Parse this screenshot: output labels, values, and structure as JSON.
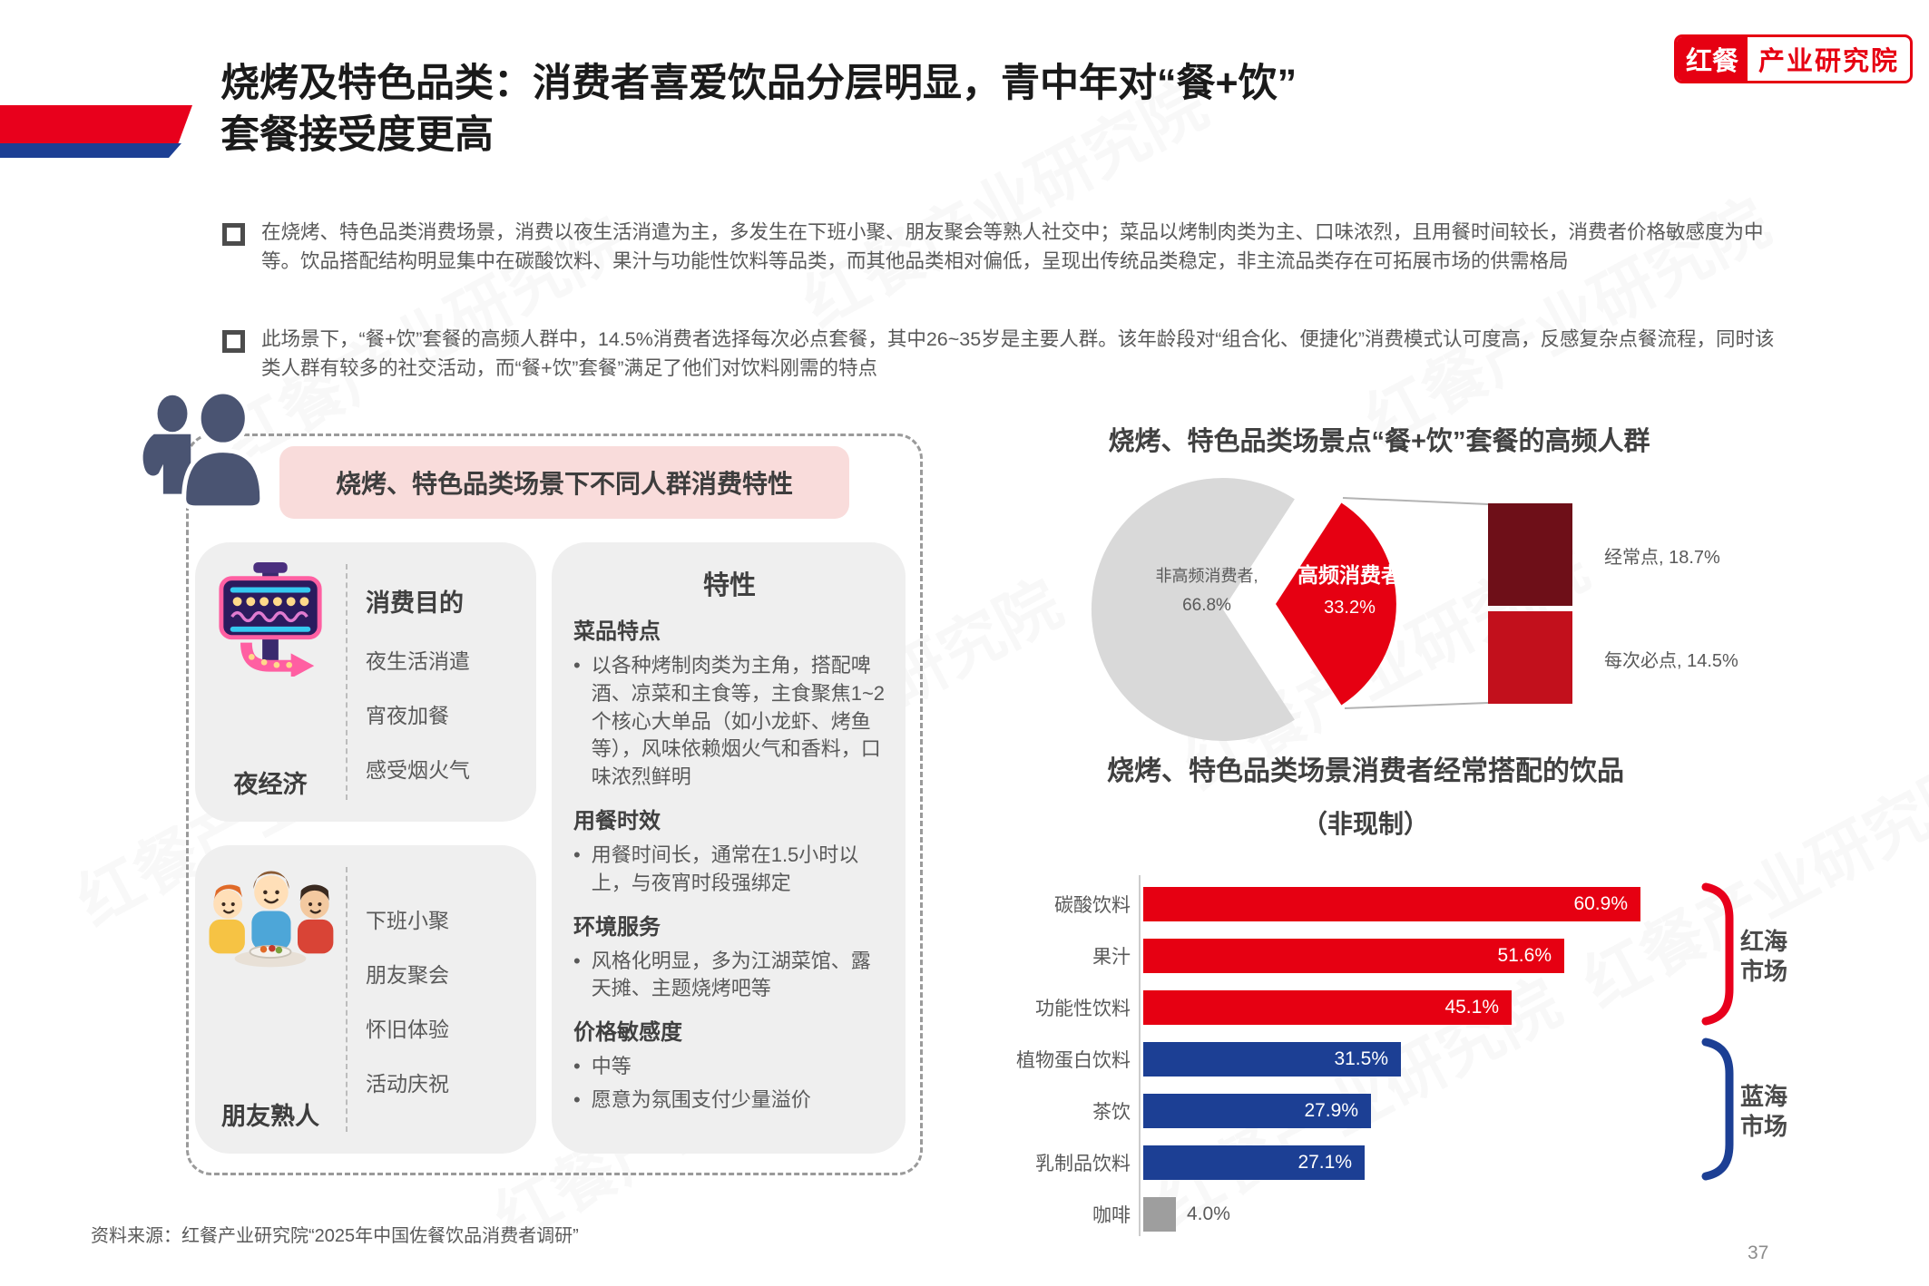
{
  "watermark": {
    "text": "红餐产业研究院"
  },
  "header": {
    "title_line1": "烧烤及特色品类：消费者喜爱饮品分层明显，青中年对“餐+饮”",
    "title_line2": "套餐接受度更高",
    "logo": {
      "brand": "红餐",
      "org": "产业研究院"
    }
  },
  "bullets": [
    "在烧烤、特色品类消费场景，消费以夜生活消遣为主，多发生在下班小聚、朋友聚会等熟人社交中；菜品以烤制肉类为主、口味浓烈，且用餐时间较长，消费者价格敏感度为中等。饮品搭配结构明显集中在碳酸饮料、果汁与功能性饮料等品类，而其他品类相对偏低，呈现出传统品类稳定，非主流品类存在可拓展市场的供需格局",
    "此场景下，“餐+饮”套餐的高频人群中，14.5%消费者选择每次必点套餐，其中26~35岁是主要人群。该年龄段对“组合化、便捷化”消费模式认可度高，反感复杂点餐流程，同时该类人群有较多的社交活动，而“餐+饮”套餐”满足了他们对饮料刚需的特点"
  ],
  "panel": {
    "header": "烧烤、特色品类场景下不同人群消费特性",
    "groups": [
      {
        "label": "夜经济",
        "icon": "neon-sign-icon",
        "heading": "消费目的",
        "items": [
          "夜生活消遣",
          "宵夜加餐",
          "感受烟火气"
        ]
      },
      {
        "label": "朋友熟人",
        "icon": "friends-dining-icon",
        "heading": "",
        "items": [
          "下班小聚",
          "朋友聚会",
          "怀旧体验",
          "活动庆祝"
        ]
      }
    ],
    "traits": {
      "title": "特性",
      "sections": [
        {
          "heading": "菜品特点",
          "bullets": [
            "以各种烤制肉类为主角，搭配啤酒、凉菜和主食等，主食聚焦1~2个核心大单品（如小龙虾、烤鱼等），风味依赖烟火气和香料，口味浓烈鲜明"
          ]
        },
        {
          "heading": "用餐时效",
          "bullets": [
            "用餐时间长，通常在1.5小时以上，与夜宵时段强绑定"
          ]
        },
        {
          "heading": "环境服务",
          "bullets": [
            "风格化明显，多为江湖菜馆、露天摊、主题烧烤吧等"
          ]
        },
        {
          "heading": "价格敏感度",
          "bullets": [
            "中等",
            "愿意为氛围支付少量溢价"
          ]
        }
      ]
    }
  },
  "chart_data": [
    {
      "type": "pie",
      "title": "烧烤、特色品类场景点“餐+饮”套餐的高频人群",
      "slices": [
        {
          "label": "非高频消费者",
          "value": 66.8,
          "display_label": "非高频消费者,",
          "display_value": "66.8%",
          "color": "#D9D9D9"
        },
        {
          "label": "高频消费者",
          "value": 33.2,
          "display_label": "高频消费者",
          "display_value": "33.2%",
          "color": "#E60012"
        }
      ],
      "breakdown": [
        {
          "label": "经常点",
          "value": 18.7,
          "display": "经常点, 18.7%",
          "color": "#6E0F18"
        },
        {
          "label": "每次必点",
          "value": 14.5,
          "display": "每次必点, 14.5%",
          "color": "#C2101C"
        }
      ],
      "legend_position": "none",
      "grid": false
    },
    {
      "type": "bar",
      "title": "烧烤、特色品类场景消费者经常搭配的饮品",
      "subtitle": "（非现制）",
      "orientation": "horizontal",
      "xlim": [
        0,
        65
      ],
      "grid": false,
      "categories": [
        "碳酸饮料",
        "果汁",
        "功能性饮料",
        "植物蛋白饮料",
        "茶饮",
        "乳制品饮料",
        "咖啡"
      ],
      "items": [
        {
          "label": "碳酸饮料",
          "value": 60.9,
          "display": "60.9%",
          "color": "#E60012",
          "label_outside": false
        },
        {
          "label": "果汁",
          "value": 51.6,
          "display": "51.6%",
          "color": "#E60012",
          "label_outside": false
        },
        {
          "label": "功能性饮料",
          "value": 45.1,
          "display": "45.1%",
          "color": "#E60012",
          "label_outside": false
        },
        {
          "label": "植物蛋白饮料",
          "value": 31.5,
          "display": "31.5%",
          "color": "#1C3F94",
          "label_outside": false
        },
        {
          "label": "茶饮",
          "value": 27.9,
          "display": "27.9%",
          "color": "#1C3F94",
          "label_outside": false
        },
        {
          "label": "乳制品饮料",
          "value": 27.1,
          "display": "27.1%",
          "color": "#1C3F94",
          "label_outside": false
        },
        {
          "label": "咖啡",
          "value": 4.0,
          "display": "4.0%",
          "color": "#9E9E9E",
          "label_outside": true
        }
      ],
      "groups": [
        {
          "label": "红海市场",
          "color": "#E8001C",
          "rows": [
            0,
            1,
            2
          ]
        },
        {
          "label": "蓝海市场",
          "color": "#1C3F94",
          "rows": [
            3,
            4,
            5
          ]
        }
      ]
    }
  ],
  "footer": {
    "source": "资料来源：红餐产业研究院“2025年中国佐餐饮品消费者调研”",
    "page": "37"
  }
}
